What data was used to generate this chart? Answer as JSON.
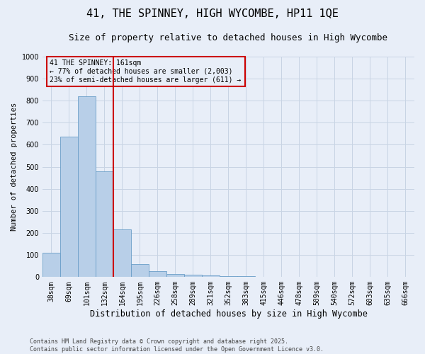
{
  "title1": "41, THE SPINNEY, HIGH WYCOMBE, HP11 1QE",
  "title2": "Size of property relative to detached houses in High Wycombe",
  "xlabel": "Distribution of detached houses by size in High Wycombe",
  "ylabel": "Number of detached properties",
  "categories": [
    "38sqm",
    "69sqm",
    "101sqm",
    "132sqm",
    "164sqm",
    "195sqm",
    "226sqm",
    "258sqm",
    "289sqm",
    "321sqm",
    "352sqm",
    "383sqm",
    "415sqm",
    "446sqm",
    "478sqm",
    "509sqm",
    "540sqm",
    "572sqm",
    "603sqm",
    "635sqm",
    "666sqm"
  ],
  "values": [
    110,
    635,
    820,
    480,
    215,
    60,
    27,
    15,
    10,
    7,
    5,
    3,
    0,
    0,
    0,
    0,
    0,
    0,
    0,
    0,
    0
  ],
  "bar_color": "#b8cfe8",
  "bar_edge_color": "#6a9ec8",
  "vline_color": "#cc0000",
  "annotation_line1": "41 THE SPINNEY: 161sqm",
  "annotation_line2": "← 77% of detached houses are smaller (2,003)",
  "annotation_line3": "23% of semi-detached houses are larger (611) →",
  "annotation_box_color": "#cc0000",
  "ylim": [
    0,
    1000
  ],
  "yticks": [
    0,
    100,
    200,
    300,
    400,
    500,
    600,
    700,
    800,
    900,
    1000
  ],
  "grid_color": "#c8d4e4",
  "background_color": "#e8eef8",
  "footer_line1": "Contains HM Land Registry data © Crown copyright and database right 2025.",
  "footer_line2": "Contains public sector information licensed under the Open Government Licence v3.0.",
  "title1_fontsize": 11,
  "title2_fontsize": 9,
  "xlabel_fontsize": 8.5,
  "ylabel_fontsize": 7.5,
  "tick_fontsize": 7,
  "annotation_fontsize": 7,
  "footer_fontsize": 6
}
